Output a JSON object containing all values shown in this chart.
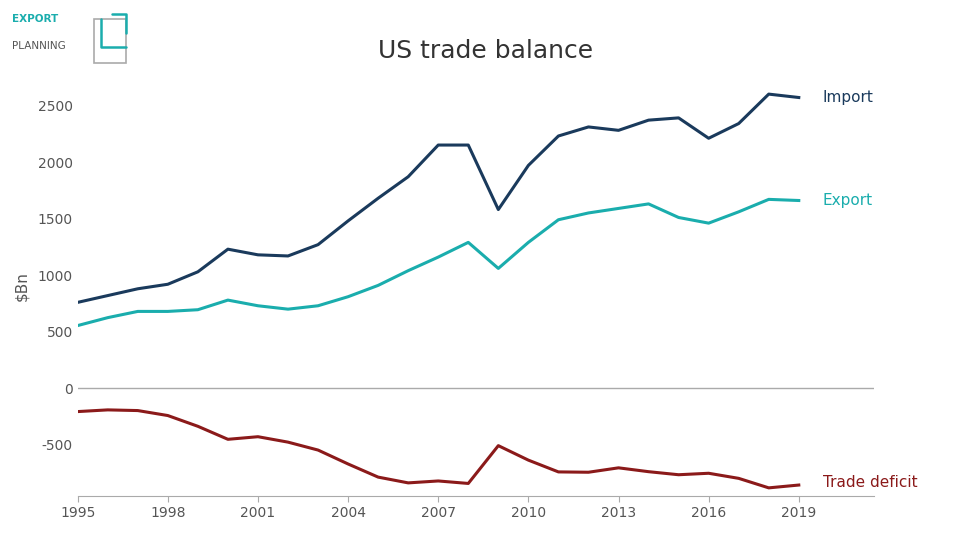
{
  "title": "US trade balance",
  "ylabel": "$Bn",
  "years": [
    1995,
    1996,
    1997,
    1998,
    1999,
    2000,
    2001,
    2002,
    2003,
    2004,
    2005,
    2006,
    2007,
    2008,
    2009,
    2010,
    2011,
    2012,
    2013,
    2014,
    2015,
    2016,
    2017,
    2018,
    2019
  ],
  "import": [
    760,
    820,
    880,
    920,
    1030,
    1230,
    1180,
    1170,
    1270,
    1480,
    1680,
    1870,
    2150,
    2150,
    1580,
    1970,
    2230,
    2310,
    2280,
    2370,
    2390,
    2210,
    2340,
    2600,
    2570
  ],
  "export": [
    555,
    625,
    680,
    680,
    695,
    780,
    730,
    700,
    730,
    810,
    910,
    1040,
    1160,
    1290,
    1060,
    1290,
    1490,
    1550,
    1590,
    1630,
    1510,
    1460,
    1560,
    1670,
    1660
  ],
  "deficit": [
    -205,
    -190,
    -196,
    -240,
    -335,
    -450,
    -427,
    -475,
    -545,
    -668,
    -784,
    -835,
    -818,
    -840,
    -506,
    -634,
    -738,
    -741,
    -702,
    -736,
    -763,
    -750,
    -795,
    -879,
    -854
  ],
  "import_color": "#1a3a5c",
  "export_color": "#1aadad",
  "deficit_color": "#8b1a1a",
  "zero_line_color": "#aaaaaa",
  "background_color": "#ffffff",
  "title_fontsize": 18,
  "label_fontsize": 11,
  "tick_fontsize": 10,
  "line_width": 2.2,
  "xlim_min": 1995,
  "xlim_max": 2021.5,
  "ylim_min": -950,
  "ylim_max": 2750,
  "yticks": [
    -500,
    0,
    500,
    1000,
    1500,
    2000,
    2500
  ],
  "xticks": [
    1995,
    1998,
    2001,
    2004,
    2007,
    2010,
    2013,
    2016,
    2019
  ],
  "logo_export_color": "#1aadad",
  "logo_planning_color": "#555555",
  "logo_box_color": "#aaaaaa"
}
